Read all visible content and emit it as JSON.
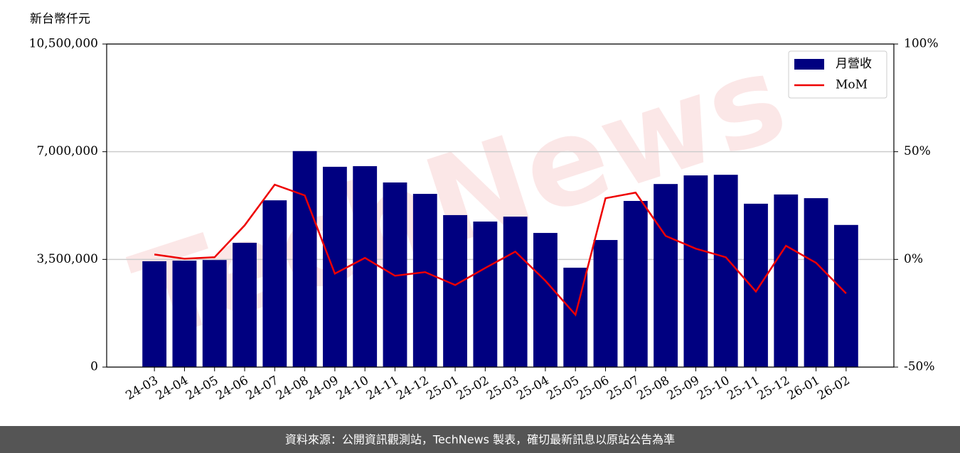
{
  "chart_data": {
    "type": "bar_line",
    "y_label": "新台幣仟元",
    "watermark": "TechNews",
    "footer": "資料來源：公開資訊觀測站，TechNews 製表，確切最新訊息以原站公告為準",
    "categories": [
      "24-03",
      "24-04",
      "24-05",
      "24-06",
      "24-07",
      "24-08",
      "24-09",
      "24-10",
      "24-11",
      "24-12",
      "25-01",
      "25-02",
      "25-03",
      "25-04",
      "25-05",
      "25-06",
      "25-07",
      "25-08",
      "25-09",
      "25-10",
      "25-11",
      "25-12",
      "26-01",
      "26-02"
    ],
    "series": [
      {
        "name": "月營收",
        "type": "bar",
        "color": "#000080",
        "values": [
          3440000,
          3460000,
          3480000,
          4040000,
          5420000,
          7020000,
          6510000,
          6530000,
          6000000,
          5630000,
          4940000,
          4730000,
          4890000,
          4360000,
          3230000,
          4130000,
          5400000,
          5950000,
          6230000,
          6250000,
          5310000,
          5610000,
          5490000,
          4620000
        ]
      },
      {
        "name": "MoM",
        "type": "line",
        "axis": "y2",
        "color": "#ee0000",
        "values": [
          2.3,
          0.3,
          1.0,
          15.8,
          34.7,
          29.7,
          -6.6,
          0.7,
          -7.6,
          -5.9,
          -11.9,
          -4.0,
          3.6,
          -9.9,
          -25.7,
          28.4,
          31.0,
          10.9,
          5.0,
          1.0,
          -14.9,
          6.3,
          -1.6,
          -15.8
        ]
      }
    ],
    "ylim": [
      0,
      10500000
    ],
    "yticks": [
      {
        "value": 0,
        "label": "0"
      },
      {
        "value": 3500000,
        "label": "3,500,000"
      },
      {
        "value": 7000000,
        "label": "7,000,000"
      },
      {
        "value": 10500000,
        "label": "10,500,000"
      }
    ],
    "y2lim": [
      -50,
      100
    ],
    "y2ticks": [
      {
        "value": -50,
        "label": "-50%"
      },
      {
        "value": 0,
        "label": "0%"
      },
      {
        "value": 50,
        "label": "50%"
      },
      {
        "value": 100,
        "label": "100%"
      }
    ],
    "grid": true,
    "legend": "upper right"
  }
}
